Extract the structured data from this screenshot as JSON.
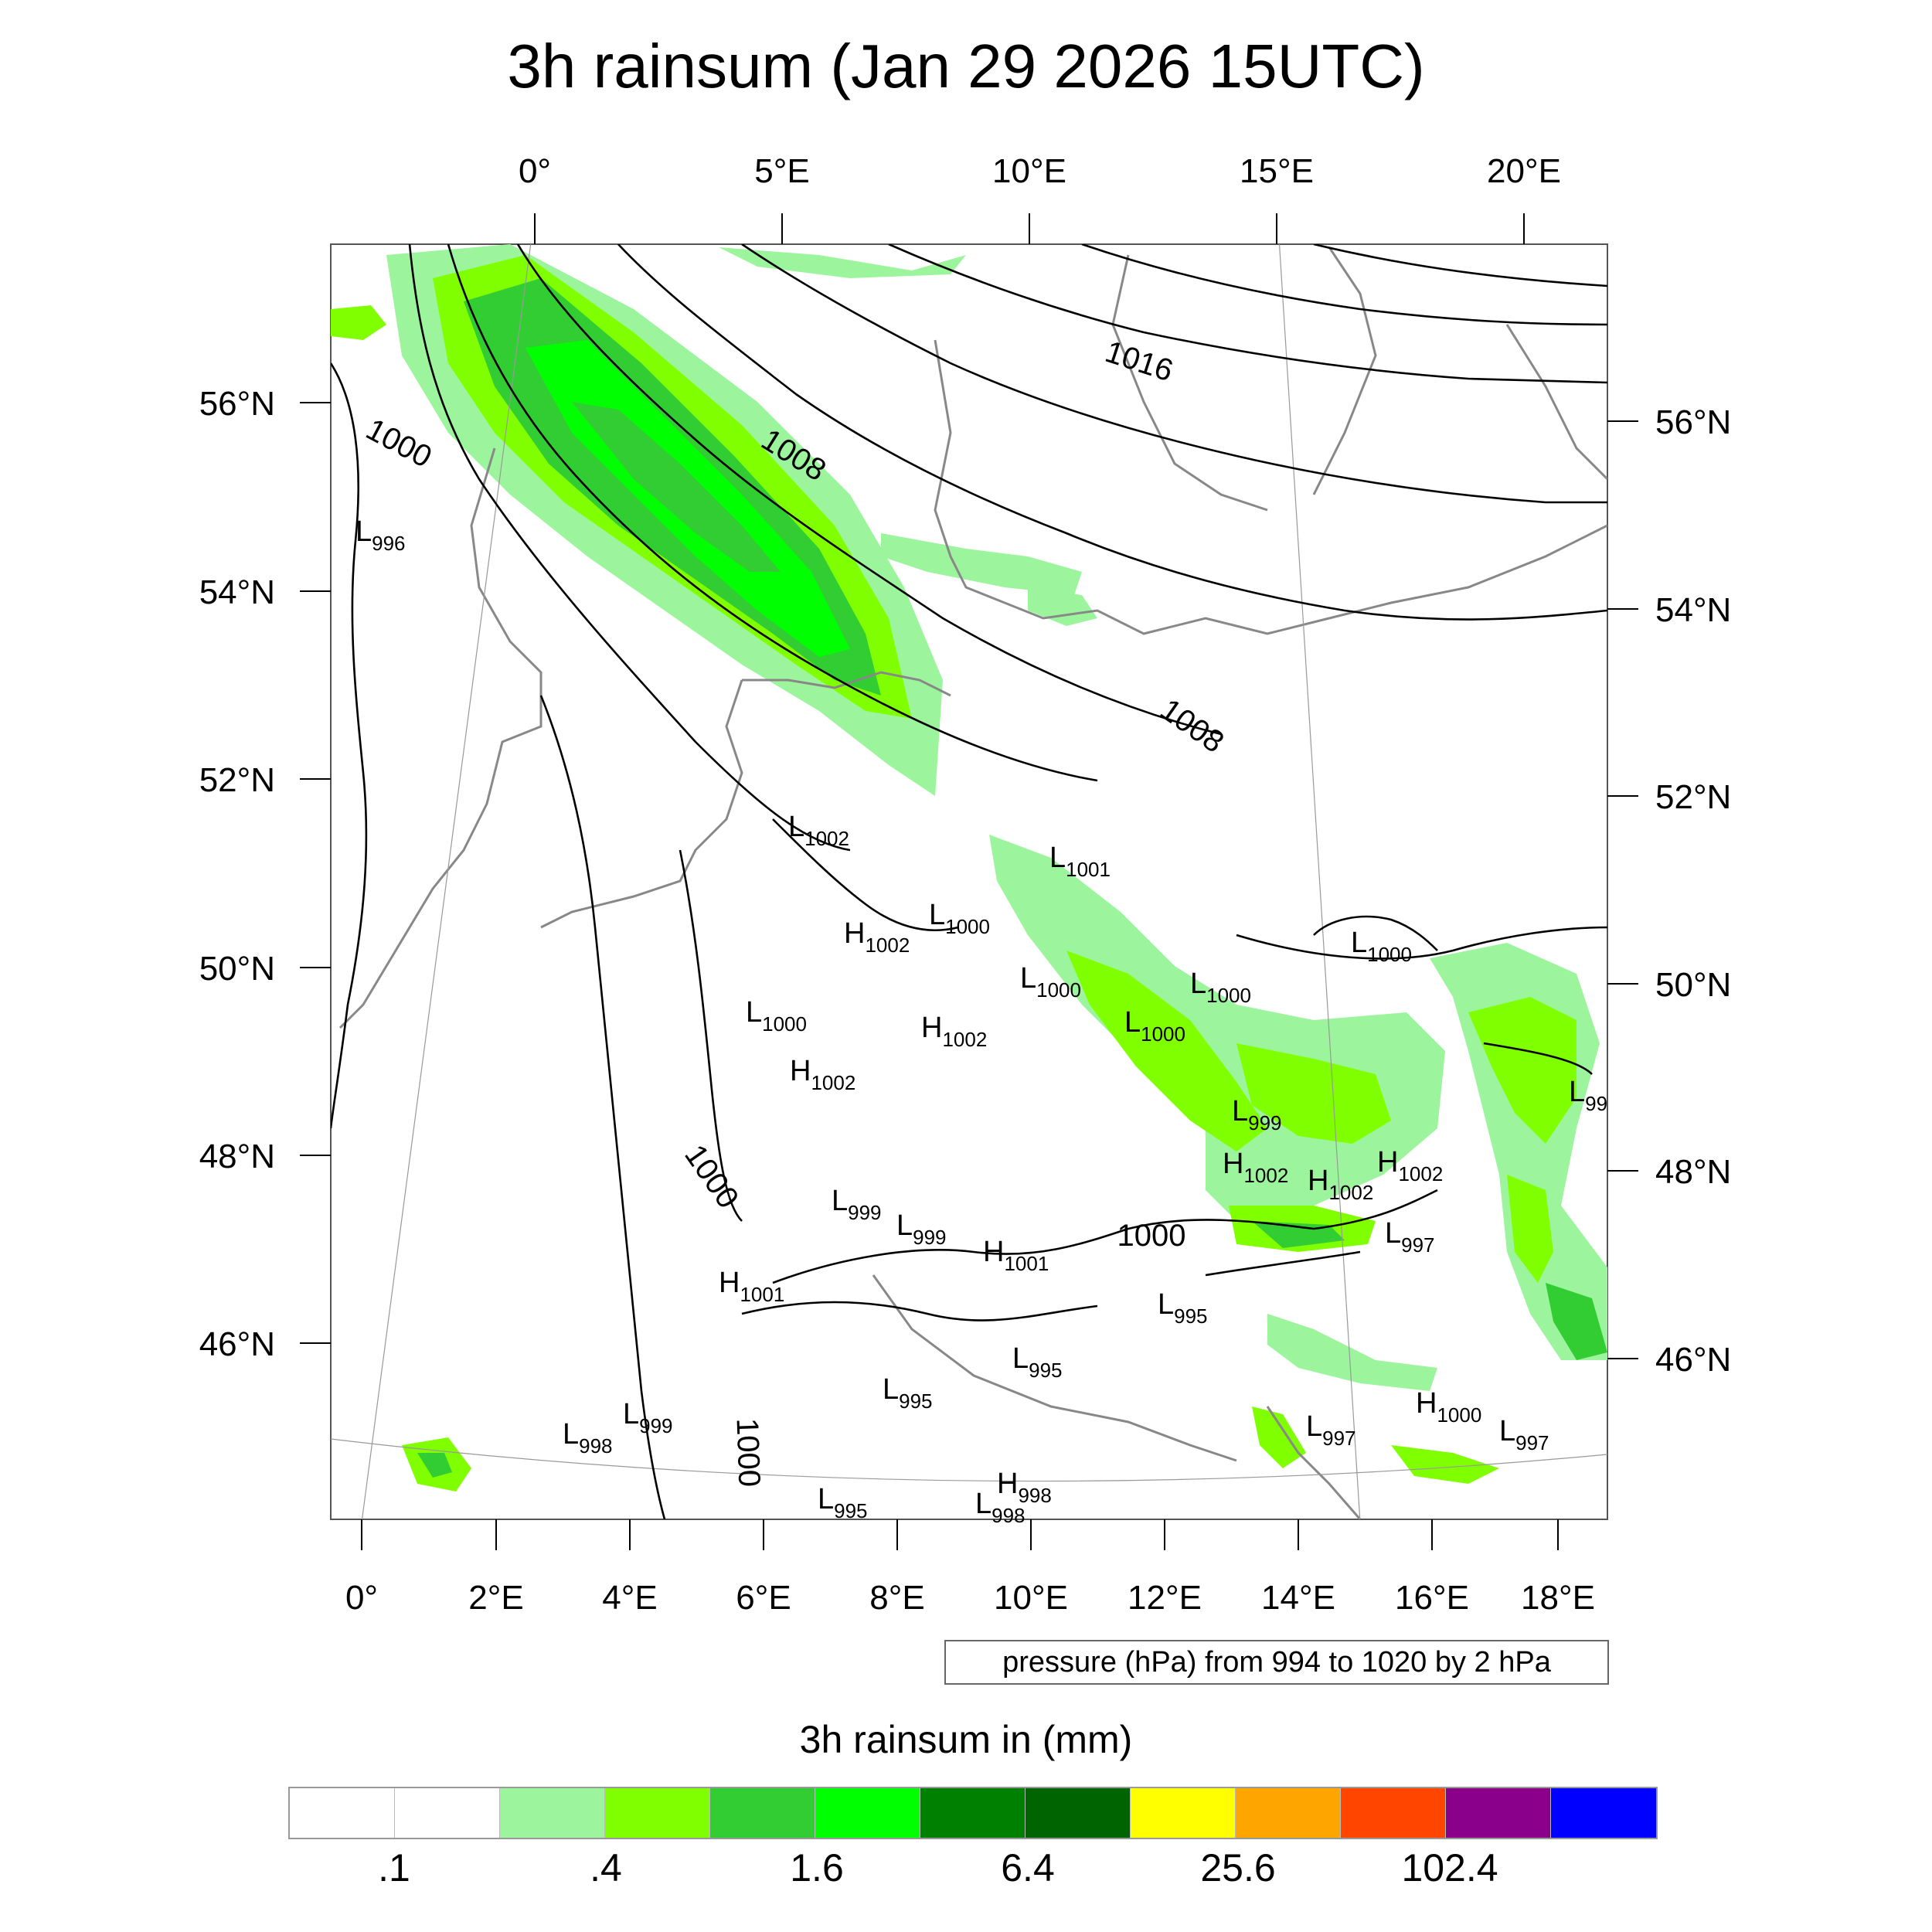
{
  "title": "3h rainsum (Jan 29 2026 15UTC)",
  "top_axis_labels": [
    "0°",
    "5°E",
    "10°E",
    "15°E",
    "20°E"
  ],
  "bottom_axis_labels": [
    "0°",
    "2°E",
    "4°E",
    "6°E",
    "8°E",
    "10°E",
    "12°E",
    "14°E",
    "16°E",
    "18°E"
  ],
  "left_axis_labels": [
    "56°N",
    "54°N",
    "52°N",
    "50°N",
    "48°N",
    "46°N"
  ],
  "right_axis_labels": [
    "56°N",
    "54°N",
    "52°N",
    "50°N",
    "48°N",
    "46°N"
  ],
  "isobar_labels": [
    "1016",
    "1008",
    "1008",
    "1000",
    "1000",
    "1000",
    "1000"
  ],
  "pressure_centers": [
    {
      "type": "L",
      "value": "996"
    },
    {
      "type": "L",
      "value": "1002"
    },
    {
      "type": "L",
      "value": "1001"
    },
    {
      "type": "H",
      "value": "1002"
    },
    {
      "type": "L",
      "value": "1000"
    },
    {
      "type": "L",
      "value": "1000"
    },
    {
      "type": "L",
      "value": "1000"
    },
    {
      "type": "L",
      "value": "1000"
    },
    {
      "type": "L",
      "value": "1000"
    },
    {
      "type": "L",
      "value": "1000"
    },
    {
      "type": "H",
      "value": "1002"
    },
    {
      "type": "H",
      "value": "1002"
    },
    {
      "type": "L",
      "value": "99"
    },
    {
      "type": "L",
      "value": "999"
    },
    {
      "type": "H",
      "value": "1002"
    },
    {
      "type": "H",
      "value": "1002"
    },
    {
      "type": "H",
      "value": "1002"
    },
    {
      "type": "L",
      "value": "999"
    },
    {
      "type": "L",
      "value": "999"
    },
    {
      "type": "H",
      "value": "1001"
    },
    {
      "type": "L",
      "value": "997"
    },
    {
      "type": "H",
      "value": "1001"
    },
    {
      "type": "L",
      "value": "995"
    },
    {
      "type": "L",
      "value": "995"
    },
    {
      "type": "L",
      "value": "995"
    },
    {
      "type": "L",
      "value": "999"
    },
    {
      "type": "L",
      "value": "998"
    },
    {
      "type": "H",
      "value": "1000"
    },
    {
      "type": "L",
      "value": "997"
    },
    {
      "type": "L",
      "value": "997"
    },
    {
      "type": "H",
      "value": "998"
    },
    {
      "type": "L",
      "value": "998"
    },
    {
      "type": "L",
      "value": "995"
    }
  ],
  "info_box": "pressure (hPa) from 994 to 1020 by 2 hPa",
  "legend": {
    "title": "3h rainsum in (mm)",
    "colors": [
      "#ffffff",
      "#ffffff",
      "#9cf59c",
      "#80ff00",
      "#32cd32",
      "#00ff00",
      "#008000",
      "#006400",
      "#ffff00",
      "#ffa500",
      "#ff4500",
      "#8b008b",
      "#0000ff"
    ],
    "tick_labels": [
      ".1",
      ".4",
      "1.6",
      "6.4",
      "25.6",
      "102.4"
    ]
  }
}
